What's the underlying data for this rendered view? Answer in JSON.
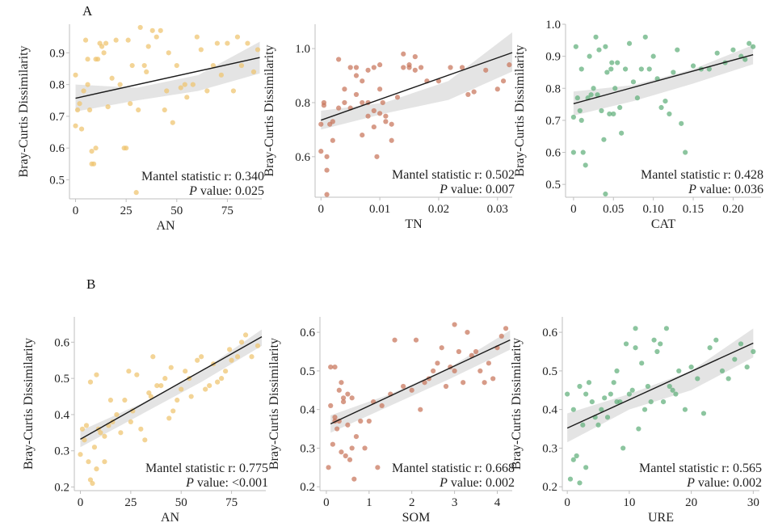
{
  "panel_labels": [
    "A",
    "B"
  ],
  "chart_data": [
    {
      "type": "scatter",
      "panel": "A",
      "xlabel": "AN",
      "ylabel": "Bray-Curtis Dissimilarity",
      "xlim": [
        -3,
        92
      ],
      "ylim": [
        0.44,
        0.99
      ],
      "xticks": [
        0,
        25,
        50,
        75
      ],
      "xtick_labels": [
        "0",
        "25",
        "50",
        "75"
      ],
      "yticks": [
        0.5,
        0.6,
        0.7,
        0.8,
        0.9
      ],
      "ytick_labels": [
        "0.5",
        "0.6",
        "0.7",
        "0.8",
        "0.9"
      ],
      "grid": false,
      "color": "#EFC36E",
      "annotation": {
        "line1": "Mantel statistic r: 0.340",
        "p_label": "P",
        "p_rest": " value: 0.025"
      },
      "fit": {
        "x": [
          0,
          91
        ],
        "y": [
          0.757,
          0.885
        ]
      },
      "band": {
        "upper": [
          0.8,
          0.79,
          0.83,
          0.935
        ],
        "lower": [
          0.715,
          0.75,
          0.78,
          0.835
        ]
      },
      "x": [
        0,
        1,
        2,
        4,
        5,
        6,
        7,
        8,
        9,
        10,
        10,
        12,
        13,
        15,
        16,
        18,
        20,
        22,
        24,
        25,
        26,
        27,
        28,
        30,
        31,
        32,
        34,
        35,
        36,
        38,
        40,
        42,
        44,
        45,
        46,
        48,
        50,
        52,
        54,
        55,
        58,
        60,
        62,
        65,
        68,
        70,
        72,
        75,
        78,
        80,
        82,
        85,
        88,
        90,
        0,
        3,
        6,
        8,
        11,
        14
      ],
      "y": [
        0.67,
        0.72,
        0.74,
        0.78,
        0.94,
        0.8,
        0.72,
        0.59,
        0.55,
        0.6,
        0.88,
        0.93,
        0.92,
        0.93,
        0.73,
        0.82,
        0.94,
        0.8,
        0.6,
        0.6,
        0.94,
        0.74,
        0.86,
        0.46,
        0.72,
        0.98,
        0.86,
        0.84,
        0.92,
        0.97,
        0.95,
        0.97,
        0.72,
        0.78,
        0.9,
        0.68,
        0.86,
        0.79,
        0.8,
        0.76,
        0.8,
        0.95,
        0.91,
        0.78,
        0.86,
        0.93,
        0.83,
        0.93,
        0.78,
        0.95,
        0.86,
        0.93,
        0.84,
        0.91,
        0.83,
        0.66,
        0.88,
        0.55,
        0.88,
        0.9
      ]
    },
    {
      "type": "scatter",
      "panel": "A",
      "xlabel": "TN",
      "ylabel": "Bray-Curtis Dissimilarity",
      "xlim": [
        -0.001,
        0.0325
      ],
      "ylim": [
        0.45,
        1.09
      ],
      "xticks": [
        0,
        0.01,
        0.02,
        0.03
      ],
      "xtick_labels": [
        "0",
        "0.01",
        "0.02",
        "0.03"
      ],
      "yticks": [
        0.6,
        0.8,
        1.0
      ],
      "ytick_labels": [
        "0.6",
        "0.8",
        "1.0"
      ],
      "grid": false,
      "color": "#C8745A",
      "annotation": {
        "line1": "Mantel statistic r: 0.502",
        "p_label": "P",
        "p_rest": " value: 0.007"
      },
      "fit": {
        "x": [
          0,
          0.0325
        ],
        "y": [
          0.735,
          0.985
        ]
      },
      "band": {
        "upper": [
          0.77,
          0.8,
          0.88,
          1.06
        ],
        "lower": [
          0.7,
          0.76,
          0.81,
          0.915
        ]
      },
      "x": [
        0,
        0,
        0.0005,
        0.0005,
        0.001,
        0.001,
        0.0015,
        0.002,
        0.002,
        0.003,
        0.004,
        0.004,
        0.005,
        0.005,
        0.006,
        0.006,
        0.007,
        0.007,
        0.007,
        0.008,
        0.008,
        0.008,
        0.009,
        0.009,
        0.009,
        0.01,
        0.01,
        0.01,
        0.011,
        0.011,
        0.012,
        0.013,
        0.014,
        0.015,
        0.015,
        0.016,
        0.016,
        0.017,
        0.018,
        0.02,
        0.022,
        0.024,
        0.025,
        0.026,
        0.028,
        0.03,
        0.031,
        0.032,
        0.001,
        0.003,
        0.006,
        0.0095,
        0.0105,
        0.012,
        0.014
      ],
      "y": [
        0.62,
        0.72,
        0.79,
        0.8,
        0.55,
        0.46,
        0.72,
        0.73,
        0.66,
        0.78,
        0.8,
        0.85,
        0.93,
        0.78,
        0.93,
        0.83,
        0.88,
        0.8,
        0.68,
        0.92,
        0.8,
        0.75,
        0.93,
        0.77,
        0.71,
        0.94,
        0.85,
        0.76,
        0.75,
        0.73,
        0.72,
        0.82,
        0.98,
        0.94,
        0.93,
        0.97,
        0.92,
        0.93,
        0.88,
        0.88,
        0.93,
        0.93,
        0.83,
        0.84,
        0.92,
        0.85,
        0.88,
        0.94,
        0.6,
        0.96,
        0.9,
        0.6,
        0.8,
        0.66,
        0.93
      ]
    },
    {
      "type": "scatter",
      "panel": "A",
      "xlabel": "CAT",
      "ylabel": "Bray-Curtis Dissimilarity",
      "xlim": [
        -0.01,
        0.235
      ],
      "ylim": [
        0.46,
        1.0
      ],
      "xticks": [
        0,
        0.05,
        0.1,
        0.15,
        0.2
      ],
      "xtick_labels": [
        "0",
        "0.05",
        "0.10",
        "0.15",
        "0.20"
      ],
      "yticks": [
        0.5,
        0.6,
        0.7,
        0.8,
        0.9,
        1.0
      ],
      "ytick_labels": [
        "0.5",
        "0.6",
        "0.7",
        "0.8",
        "0.9",
        "1.0"
      ],
      "grid": false,
      "color": "#5FAF7A",
      "annotation": {
        "line1": "Mantel statistic r: 0.428",
        "p_label": "P",
        "p_rest": " value: 0.036"
      },
      "fit": {
        "x": [
          0,
          0.225
        ],
        "y": [
          0.752,
          0.905
        ]
      },
      "band": {
        "upper": [
          0.79,
          0.81,
          0.86,
          0.935
        ],
        "lower": [
          0.715,
          0.76,
          0.815,
          0.875
        ]
      },
      "x": [
        0,
        0,
        0.003,
        0.005,
        0.008,
        0.01,
        0.012,
        0.015,
        0.018,
        0.02,
        0.022,
        0.025,
        0.028,
        0.03,
        0.032,
        0.035,
        0.038,
        0.04,
        0.042,
        0.045,
        0.048,
        0.05,
        0.052,
        0.055,
        0.058,
        0.06,
        0.065,
        0.07,
        0.075,
        0.08,
        0.085,
        0.09,
        0.095,
        0.1,
        0.105,
        0.11,
        0.115,
        0.12,
        0.125,
        0.13,
        0.135,
        0.14,
        0.15,
        0.16,
        0.17,
        0.18,
        0.19,
        0.2,
        0.21,
        0.215,
        0.22,
        0.225,
        0.04,
        0.047,
        0.01
      ],
      "y": [
        0.71,
        0.6,
        0.93,
        0.77,
        0.73,
        0.7,
        0.6,
        0.56,
        0.77,
        0.9,
        0.78,
        0.8,
        0.96,
        0.78,
        0.92,
        0.73,
        0.64,
        0.47,
        0.85,
        0.72,
        0.88,
        0.72,
        0.8,
        0.88,
        0.74,
        0.66,
        0.86,
        0.94,
        0.82,
        0.77,
        0.86,
        0.96,
        0.86,
        0.9,
        0.83,
        0.74,
        0.76,
        0.72,
        0.85,
        0.92,
        0.69,
        0.6,
        0.87,
        0.86,
        0.86,
        0.91,
        0.88,
        0.92,
        0.9,
        0.89,
        0.94,
        0.93,
        0.93,
        0.86,
        0.86
      ]
    },
    {
      "type": "scatter",
      "panel": "B",
      "xlabel": "AN",
      "ylabel": "Bray-Curtis Dissimilarity",
      "xlim": [
        -3,
        92
      ],
      "ylim": [
        0.19,
        0.67
      ],
      "xticks": [
        0,
        25,
        50,
        75
      ],
      "xtick_labels": [
        "0",
        "25",
        "50",
        "75"
      ],
      "yticks": [
        0.2,
        0.3,
        0.4,
        0.5,
        0.6
      ],
      "ytick_labels": [
        "0.2",
        "0.3",
        "0.4",
        "0.5",
        "0.6"
      ],
      "grid": false,
      "color": "#EFC36E",
      "annotation": {
        "line1": "Mantel statistic r: 0.775",
        "p_label": "P",
        "p_rest": " value: <0.001"
      },
      "fit": {
        "x": [
          0,
          90
        ],
        "y": [
          0.332,
          0.615
        ]
      },
      "band": {
        "upper": [
          0.355,
          0.43,
          0.52,
          0.635
        ],
        "lower": [
          0.31,
          0.4,
          0.49,
          0.59
        ]
      },
      "x": [
        0,
        1,
        2,
        3,
        4,
        5,
        6,
        7,
        8,
        9,
        10,
        12,
        14,
        15,
        16,
        18,
        20,
        22,
        24,
        25,
        26,
        28,
        30,
        32,
        34,
        35,
        36,
        38,
        40,
        42,
        44,
        45,
        46,
        48,
        50,
        52,
        54,
        55,
        58,
        60,
        62,
        64,
        66,
        68,
        70,
        72,
        74,
        75,
        78,
        80,
        82,
        85,
        88,
        5,
        8,
        12
      ],
      "y": [
        0.29,
        0.36,
        0.33,
        0.37,
        0.27,
        0.22,
        0.21,
        0.31,
        0.51,
        0.36,
        0.35,
        0.27,
        0.37,
        0.44,
        0.38,
        0.4,
        0.35,
        0.44,
        0.52,
        0.38,
        0.41,
        0.51,
        0.36,
        0.33,
        0.46,
        0.45,
        0.56,
        0.48,
        0.48,
        0.5,
        0.39,
        0.53,
        0.41,
        0.44,
        0.47,
        0.52,
        0.5,
        0.45,
        0.55,
        0.56,
        0.47,
        0.48,
        0.54,
        0.49,
        0.5,
        0.52,
        0.58,
        0.55,
        0.56,
        0.6,
        0.62,
        0.56,
        0.59,
        0.49,
        0.25,
        0.34
      ]
    },
    {
      "type": "scatter",
      "panel": "B",
      "xlabel": "SOM",
      "ylabel": "Bray-Curtis Dissimilarity",
      "xlim": [
        -0.15,
        4.35
      ],
      "ylim": [
        0.19,
        0.64
      ],
      "xticks": [
        0,
        1,
        2,
        3,
        4
      ],
      "xtick_labels": [
        "0",
        "1",
        "2",
        "3",
        "4"
      ],
      "yticks": [
        0.2,
        0.3,
        0.4,
        0.5,
        0.6
      ],
      "ytick_labels": [
        "0.2",
        "0.3",
        "0.4",
        "0.5",
        "0.6"
      ],
      "grid": false,
      "color": "#C8745A",
      "annotation": {
        "line1": "Mantel statistic r: 0.668",
        "p_label": "P",
        "p_rest": " value: 0.002"
      },
      "fit": {
        "x": [
          0.1,
          4.3
        ],
        "y": [
          0.363,
          0.58
        ]
      },
      "band": {
        "upper": [
          0.385,
          0.44,
          0.51,
          0.605
        ],
        "lower": [
          0.34,
          0.41,
          0.48,
          0.555
        ]
      },
      "x": [
        0.05,
        0.1,
        0.1,
        0.15,
        0.2,
        0.2,
        0.25,
        0.3,
        0.3,
        0.35,
        0.4,
        0.4,
        0.45,
        0.5,
        0.5,
        0.55,
        0.6,
        0.6,
        0.7,
        0.8,
        0.9,
        1.0,
        1.1,
        1.2,
        1.3,
        1.5,
        1.6,
        1.8,
        2.0,
        2.1,
        2.2,
        2.3,
        2.4,
        2.5,
        2.6,
        2.7,
        2.8,
        2.9,
        3.0,
        3.0,
        3.1,
        3.2,
        3.3,
        3.4,
        3.5,
        3.6,
        3.7,
        3.8,
        3.9,
        4.0,
        4.1,
        4.2,
        0.2,
        0.35,
        0.65
      ],
      "y": [
        0.25,
        0.41,
        0.51,
        0.31,
        0.51,
        0.38,
        0.35,
        0.45,
        0.37,
        0.29,
        0.42,
        0.43,
        0.28,
        0.44,
        0.36,
        0.27,
        0.43,
        0.3,
        0.33,
        0.37,
        0.3,
        0.37,
        0.42,
        0.25,
        0.41,
        0.44,
        0.58,
        0.46,
        0.45,
        0.58,
        0.4,
        0.47,
        0.48,
        0.5,
        0.52,
        0.56,
        0.46,
        0.51,
        0.62,
        0.5,
        0.55,
        0.47,
        0.6,
        0.54,
        0.55,
        0.5,
        0.47,
        0.52,
        0.48,
        0.56,
        0.59,
        0.61,
        0.37,
        0.47,
        0.22
      ]
    },
    {
      "type": "scatter",
      "panel": "B",
      "xlabel": "URE",
      "ylabel": "Bray-Curtis Dissimilarity",
      "xlim": [
        -0.8,
        31
      ],
      "ylim": [
        0.19,
        0.64
      ],
      "xticks": [
        0,
        10,
        20,
        30
      ],
      "xtick_labels": [
        "0",
        "10",
        "20",
        "30"
      ],
      "yticks": [
        0.2,
        0.3,
        0.4,
        0.5,
        0.6
      ],
      "ytick_labels": [
        "0.2",
        "0.3",
        "0.4",
        "0.5",
        "0.6"
      ],
      "grid": false,
      "color": "#5FAF7A",
      "annotation": {
        "line1": "Mantel statistic r: 0.565",
        "p_label": "P",
        "p_rest": " value: 0.002"
      },
      "fit": {
        "x": [
          0,
          30
        ],
        "y": [
          0.352,
          0.572
        ]
      },
      "band": {
        "upper": [
          0.39,
          0.44,
          0.5,
          0.61
        ],
        "lower": [
          0.315,
          0.4,
          0.45,
          0.535
        ]
      },
      "x": [
        0,
        0.5,
        1,
        1.5,
        2,
        2,
        2.5,
        3,
        3.5,
        4,
        4.5,
        5,
        5.5,
        6,
        6.5,
        7,
        7.5,
        8,
        8.5,
        9,
        9.5,
        10,
        10.5,
        11,
        11.5,
        12,
        12.5,
        13,
        13.5,
        14,
        14.5,
        15,
        15.5,
        16,
        16.5,
        17,
        17.5,
        18,
        19,
        20,
        21,
        22,
        23,
        24,
        25,
        26,
        27,
        28,
        29,
        30,
        1,
        3,
        8,
        11
      ],
      "y": [
        0.44,
        0.22,
        0.4,
        0.28,
        0.21,
        0.46,
        0.36,
        0.25,
        0.47,
        0.42,
        0.38,
        0.36,
        0.4,
        0.43,
        0.38,
        0.44,
        0.47,
        0.5,
        0.42,
        0.3,
        0.57,
        0.44,
        0.45,
        0.61,
        0.35,
        0.52,
        0.4,
        0.46,
        0.42,
        0.58,
        0.55,
        0.57,
        0.42,
        0.61,
        0.46,
        0.45,
        0.44,
        0.5,
        0.4,
        0.51,
        0.48,
        0.39,
        0.56,
        0.58,
        0.5,
        0.48,
        0.53,
        0.57,
        0.51,
        0.55,
        0.27,
        0.44,
        0.42,
        0.56
      ]
    }
  ]
}
